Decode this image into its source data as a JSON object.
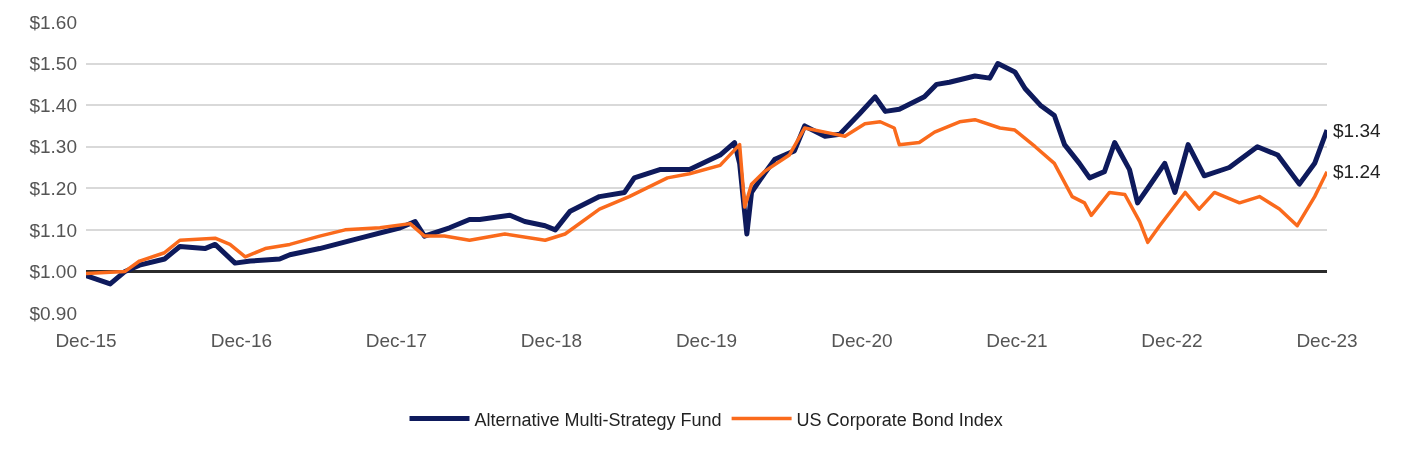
{
  "chart_data": {
    "type": "line",
    "series": [
      {
        "name": "Alternative Multi-Strategy Fund",
        "color": "#0e1a5c",
        "x": [
          "2015-12-31",
          "2016-02-26",
          "2016-04-01",
          "2016-05-05",
          "2016-07-03",
          "2016-08-08",
          "2016-10-06",
          "2016-10-30",
          "2016-12-16",
          "2017-01-21",
          "2017-03-31",
          "2017-04-24",
          "2017-07-03",
          "2017-10-06",
          "2018-01-09",
          "2018-02-13",
          "2018-03-07",
          "2018-05-05",
          "2018-06-21",
          "2018-07-15",
          "2018-09-24",
          "2018-10-29",
          "2018-12-16",
          "2019-01-09",
          "2019-02-13",
          "2019-04-23",
          "2019-06-21",
          "2019-07-14",
          "2019-09-12",
          "2019-11-21",
          "2020-02-01",
          "2020-03-06",
          "2020-03-18",
          "2020-04-04",
          "2020-04-15",
          "2020-05-15",
          "2020-06-09",
          "2020-07-25",
          "2020-08-18",
          "2020-10-05",
          "2020-11-09",
          "2020-12-26",
          "2021-01-31",
          "2021-02-24",
          "2021-03-29",
          "2021-05-27",
          "2021-06-25",
          "2021-07-25",
          "2021-09-23",
          "2021-10-28",
          "2021-11-16",
          "2021-12-26",
          "2022-01-19",
          "2022-02-24",
          "2022-03-29",
          "2022-04-22",
          "2022-05-27",
          "2022-06-20",
          "2022-07-25",
          "2022-08-18",
          "2022-09-22",
          "2022-10-11",
          "2022-11-04",
          "2022-12-14",
          "2023-01-07",
          "2023-02-07",
          "2023-03-17",
          "2023-05-15",
          "2023-07-20",
          "2023-09-06",
          "2023-10-27",
          "2023-12-02",
          "2023-12-31"
        ],
        "values": [
          0.99,
          0.97,
          1.0,
          1.015,
          1.03,
          1.06,
          1.055,
          1.065,
          1.02,
          1.025,
          1.03,
          1.04,
          1.055,
          1.08,
          1.105,
          1.12,
          1.085,
          1.105,
          1.125,
          1.125,
          1.135,
          1.12,
          1.11,
          1.1,
          1.145,
          1.18,
          1.19,
          1.225,
          1.245,
          1.245,
          1.28,
          1.31,
          1.26,
          1.09,
          1.19,
          1.235,
          1.27,
          1.29,
          1.35,
          1.325,
          1.33,
          1.38,
          1.42,
          1.385,
          1.39,
          1.42,
          1.45,
          1.455,
          1.47,
          1.465,
          1.5,
          1.48,
          1.44,
          1.4,
          1.375,
          1.305,
          1.26,
          1.225,
          1.24,
          1.31,
          1.245,
          1.165,
          1.2,
          1.26,
          1.19,
          1.305,
          1.23,
          1.25,
          1.3,
          1.28,
          1.21,
          1.26,
          1.34
        ]
      },
      {
        "name": "US Corporate Bond Index",
        "color": "#fa6a1c",
        "x": [
          "2015-12-31",
          "2016-04-01",
          "2016-05-05",
          "2016-07-03",
          "2016-08-08",
          "2016-10-30",
          "2016-12-04",
          "2017-01-09",
          "2017-02-25",
          "2017-04-24",
          "2017-07-03",
          "2017-09-01",
          "2017-11-22",
          "2018-02-01",
          "2018-03-07",
          "2018-04-23",
          "2018-06-21",
          "2018-09-12",
          "2018-12-16",
          "2019-02-01",
          "2019-04-23",
          "2019-07-02",
          "2019-09-30",
          "2019-11-21",
          "2020-02-01",
          "2020-03-18",
          "2020-03-30",
          "2020-04-15",
          "2020-05-15",
          "2020-07-13",
          "2020-08-18",
          "2020-10-05",
          "2020-11-21",
          "2021-01-07",
          "2021-02-12",
          "2021-03-17",
          "2021-03-29",
          "2021-05-15",
          "2021-06-20",
          "2021-08-18",
          "2021-09-23",
          "2021-11-21",
          "2021-12-26",
          "2022-02-12",
          "2022-03-29",
          "2022-05-10",
          "2022-06-08",
          "2022-06-24",
          "2022-08-06",
          "2022-09-11",
          "2022-10-16",
          "2022-11-04",
          "2022-12-02",
          "2023-01-31",
          "2023-03-05",
          "2023-04-10",
          "2023-06-08",
          "2023-07-25",
          "2023-09-10",
          "2023-10-22",
          "2023-12-02",
          "2023-12-31"
        ],
        "values": [
          0.995,
          1.0,
          1.025,
          1.045,
          1.075,
          1.08,
          1.065,
          1.035,
          1.055,
          1.065,
          1.085,
          1.1,
          1.105,
          1.115,
          1.085,
          1.085,
          1.075,
          1.09,
          1.075,
          1.09,
          1.15,
          1.18,
          1.225,
          1.235,
          1.255,
          1.305,
          1.155,
          1.21,
          1.24,
          1.28,
          1.345,
          1.335,
          1.325,
          1.355,
          1.36,
          1.345,
          1.305,
          1.31,
          1.335,
          1.36,
          1.365,
          1.345,
          1.34,
          1.3,
          1.26,
          1.18,
          1.165,
          1.135,
          1.19,
          1.185,
          1.12,
          1.07,
          1.11,
          1.19,
          1.15,
          1.19,
          1.165,
          1.18,
          1.15,
          1.11,
          1.18,
          1.24
        ]
      }
    ],
    "xlim": [
      "2015-12-31",
      "2023-12-31"
    ],
    "xticks": [
      {
        "value": "2015-12-31",
        "label": "Dec-15"
      },
      {
        "value": "2016-12-31",
        "label": "Dec-16"
      },
      {
        "value": "2017-12-31",
        "label": "Dec-17"
      },
      {
        "value": "2018-12-31",
        "label": "Dec-18"
      },
      {
        "value": "2019-12-31",
        "label": "Dec-19"
      },
      {
        "value": "2020-12-31",
        "label": "Dec-20"
      },
      {
        "value": "2021-12-31",
        "label": "Dec-21"
      },
      {
        "value": "2022-12-31",
        "label": "Dec-22"
      },
      {
        "value": "2023-12-31",
        "label": "Dec-23"
      }
    ],
    "ylim": [
      0.9,
      1.6
    ],
    "yticks": [
      {
        "value": 0.9,
        "label": "$0.90"
      },
      {
        "value": 1.0,
        "label": "$1.00"
      },
      {
        "value": 1.1,
        "label": "$1.10"
      },
      {
        "value": 1.2,
        "label": "$1.20"
      },
      {
        "value": 1.3,
        "label": "$1.30"
      },
      {
        "value": 1.4,
        "label": "$1.40"
      },
      {
        "value": 1.5,
        "label": "$1.50"
      },
      {
        "value": 1.6,
        "label": "$1.60"
      }
    ],
    "ref_lines": [
      {
        "axis": "y",
        "value": 1.0,
        "color": "#2b2b2b"
      }
    ],
    "annotations": [
      {
        "text": "$1.34",
        "x": "2023-12-31",
        "y": 1.34
      },
      {
        "text": "$1.24",
        "x": "2023-12-31",
        "y": 1.24
      }
    ],
    "grid": "y",
    "legend": "bottom",
    "marker": "none",
    "line_style": "solid"
  }
}
